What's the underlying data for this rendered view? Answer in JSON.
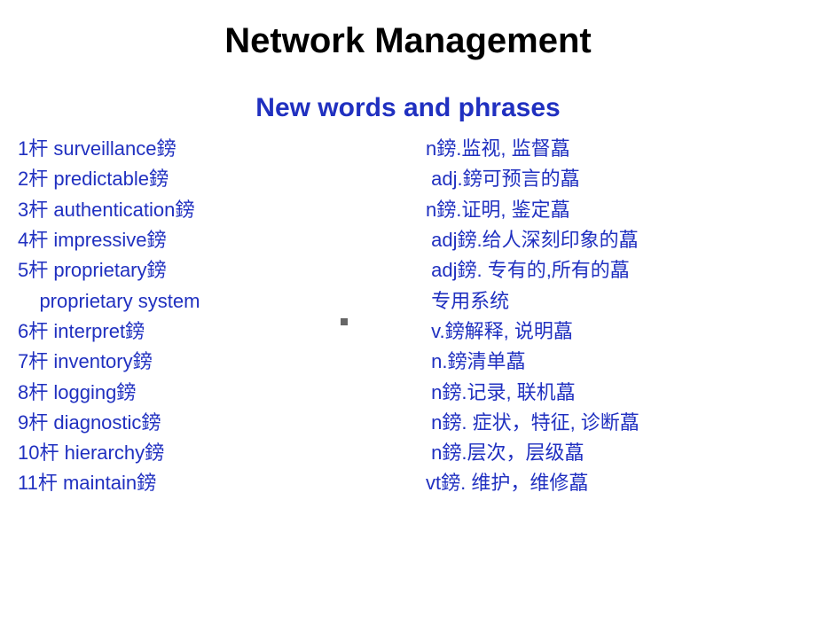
{
  "title": "Network Management",
  "subtitle": "New words and phrases",
  "text_color": "#2030c0",
  "title_color": "#000000",
  "background_color": "#ffffff",
  "title_fontsize": 40,
  "subtitle_fontsize": 30,
  "row_fontsize": 22,
  "rows": [
    {
      "left": "1杆 surveillance鎊",
      "right": "n鎊.监视, 监督藠"
    },
    {
      "left": "2杆 predictable鎊",
      "right": " adj.鎊可预言的藠"
    },
    {
      "left": "3杆 authentication鎊",
      "right": "n鎊.证明, 鉴定藠"
    },
    {
      "left": "4杆 impressive鎊",
      "right": " adj鎊.给人深刻印象的藠"
    },
    {
      "left": "5杆 proprietary鎊",
      "right": " adj鎊. 专有的,所有的藠"
    },
    {
      "left": "    proprietary system",
      "right": " 专用系统"
    },
    {
      "left": "6杆 interpret鎊",
      "right": " v.鎊解释, 说明藠"
    },
    {
      "left": "7杆 inventory鎊",
      "right": " n.鎊清单藠"
    },
    {
      "left": "8杆 logging鎊",
      "right": " n鎊.记录, 联机藠"
    },
    {
      "left": "9杆 diagnostic鎊",
      "right": " n鎊. 症状，特征, 诊断藠"
    },
    {
      "left": "10杆 hierarchy鎊",
      "right": " n鎊.层次，层级藠"
    },
    {
      "left": "11杆 maintain鎊",
      "right": "vt鎊. 维护，维修藠"
    }
  ]
}
